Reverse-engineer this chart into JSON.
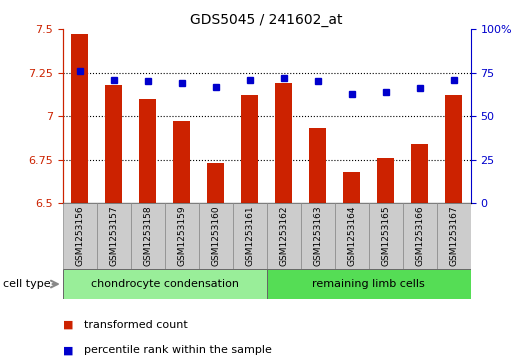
{
  "title": "GDS5045 / 241602_at",
  "samples": [
    "GSM1253156",
    "GSM1253157",
    "GSM1253158",
    "GSM1253159",
    "GSM1253160",
    "GSM1253161",
    "GSM1253162",
    "GSM1253163",
    "GSM1253164",
    "GSM1253165",
    "GSM1253166",
    "GSM1253167"
  ],
  "bar_values": [
    7.47,
    7.18,
    7.1,
    6.97,
    6.73,
    7.12,
    7.19,
    6.93,
    6.68,
    6.76,
    6.84,
    7.12
  ],
  "dot_values": [
    76,
    71,
    70,
    69,
    67,
    71,
    72,
    70,
    63,
    64,
    66,
    71
  ],
  "bar_color": "#cc2200",
  "dot_color": "#0000cc",
  "ylim_left": [
    6.5,
    7.5
  ],
  "ylim_right": [
    0,
    100
  ],
  "yticks_left": [
    6.5,
    6.75,
    7.0,
    7.25,
    7.5
  ],
  "ytick_labels_left": [
    "6.5",
    "6.75",
    "7",
    "7.25",
    "7.5"
  ],
  "yticks_right": [
    0,
    25,
    50,
    75,
    100
  ],
  "ytick_labels_right": [
    "0",
    "25",
    "50",
    "75",
    "100%"
  ],
  "hlines": [
    6.75,
    7.0,
    7.25
  ],
  "group1_label": "chondrocyte condensation",
  "group2_label": "remaining limb cells",
  "cell_type_label": "cell type",
  "legend1": "transformed count",
  "legend2": "percentile rank within the sample",
  "group1_color": "#99ee99",
  "group2_color": "#55dd55",
  "xticklabel_bg": "#cccccc",
  "bar_width": 0.5,
  "fig_width": 5.23,
  "fig_height": 3.63,
  "dpi": 100
}
